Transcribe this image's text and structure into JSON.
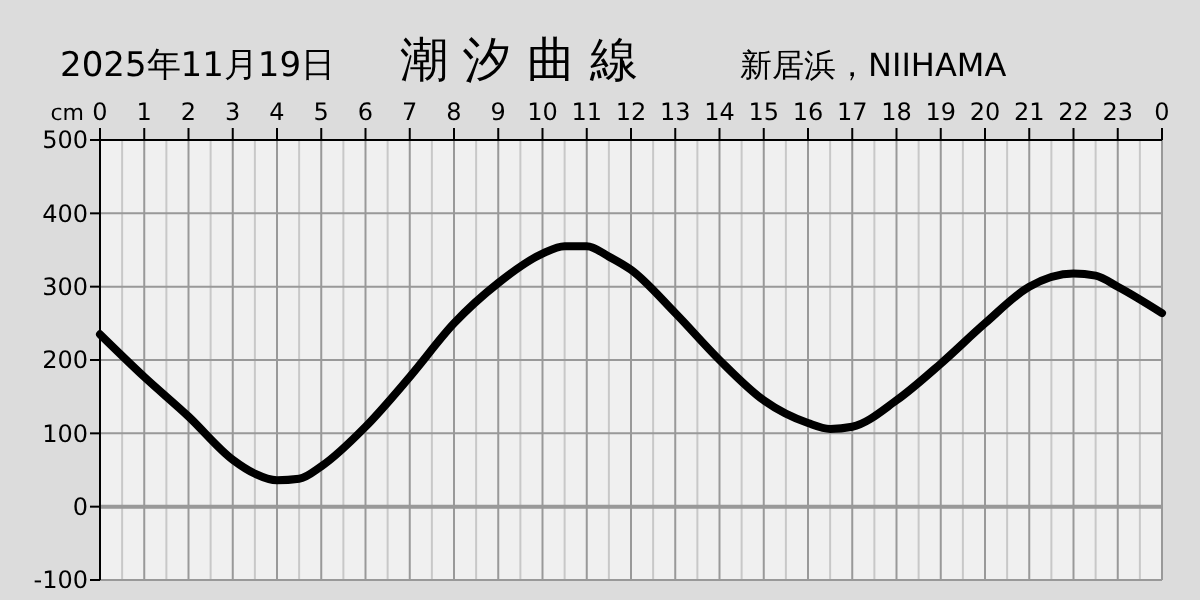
{
  "chart_data": {
    "type": "line",
    "title": "潮 汐 曲 線",
    "subtitle": "2025年11月19日",
    "annotations": [
      "新居浜，NIIHAMA"
    ],
    "ylabel": "cm",
    "x": [
      "2025-11-19T00:00",
      "2025-11-19T01:00",
      "2025-11-19T02:00",
      "2025-11-19T03:00",
      "2025-11-19T03:30",
      "2025-11-19T04:00",
      "2025-11-19T04:30",
      "2025-11-19T05:00",
      "2025-11-19T06:00",
      "2025-11-19T07:00",
      "2025-11-19T08:00",
      "2025-11-19T09:00",
      "2025-11-19T10:00",
      "2025-11-19T10:30",
      "2025-11-19T11:00",
      "2025-11-19T11:30",
      "2025-11-19T12:00",
      "2025-11-19T13:00",
      "2025-11-19T14:00",
      "2025-11-19T15:00",
      "2025-11-19T16:00",
      "2025-11-19T16:30",
      "2025-11-19T17:00",
      "2025-11-19T18:00",
      "2025-11-19T19:00",
      "2025-11-19T20:00",
      "2025-11-19T21:00",
      "2025-11-19T22:00",
      "2025-11-19T22:30",
      "2025-11-19T23:00",
      "2025-11-20T00:00"
    ],
    "series": [
      {
        "color": "#000000",
        "values": [
          235,
          177,
          123,
          64,
          45,
          36,
          38,
          55,
          109,
          177,
          250,
          305,
          345,
          355,
          355,
          341,
          323,
          264,
          200,
          145,
          114,
          106,
          109,
          145,
          195,
          250,
          300,
          318,
          315,
          300,
          264
        ]
      }
    ],
    "xlim": [
      "2025-11-19T00:00",
      "2025-11-20T00:00"
    ],
    "xticks": [
      {
        "value": "2025-11-19T00:00",
        "label": "0"
      },
      {
        "value": "2025-11-19T01:00",
        "label": "1"
      },
      {
        "value": "2025-11-19T02:00",
        "label": "2"
      },
      {
        "value": "2025-11-19T03:00",
        "label": "3"
      },
      {
        "value": "2025-11-19T04:00",
        "label": "4"
      },
      {
        "value": "2025-11-19T05:00",
        "label": "5"
      },
      {
        "value": "2025-11-19T06:00",
        "label": "6"
      },
      {
        "value": "2025-11-19T07:00",
        "label": "7"
      },
      {
        "value": "2025-11-19T08:00",
        "label": "8"
      },
      {
        "value": "2025-11-19T09:00",
        "label": "9"
      },
      {
        "value": "2025-11-19T10:00",
        "label": "10"
      },
      {
        "value": "2025-11-19T11:00",
        "label": "11"
      },
      {
        "value": "2025-11-19T12:00",
        "label": "12"
      },
      {
        "value": "2025-11-19T13:00",
        "label": "13"
      },
      {
        "value": "2025-11-19T14:00",
        "label": "14"
      },
      {
        "value": "2025-11-19T15:00",
        "label": "15"
      },
      {
        "value": "2025-11-19T16:00",
        "label": "16"
      },
      {
        "value": "2025-11-19T17:00",
        "label": "17"
      },
      {
        "value": "2025-11-19T18:00",
        "label": "18"
      },
      {
        "value": "2025-11-19T19:00",
        "label": "19"
      },
      {
        "value": "2025-11-19T20:00",
        "label": "20"
      },
      {
        "value": "2025-11-19T21:00",
        "label": "21"
      },
      {
        "value": "2025-11-19T22:00",
        "label": "22"
      },
      {
        "value": "2025-11-19T23:00",
        "label": "23"
      },
      {
        "value": "2025-11-20T00:00",
        "label": "0"
      }
    ],
    "ylim": [
      -100,
      500
    ],
    "yticks": [
      -100,
      0,
      100,
      200,
      300,
      400,
      500
    ],
    "grid": true,
    "marker": "none",
    "line_style": "solid"
  }
}
